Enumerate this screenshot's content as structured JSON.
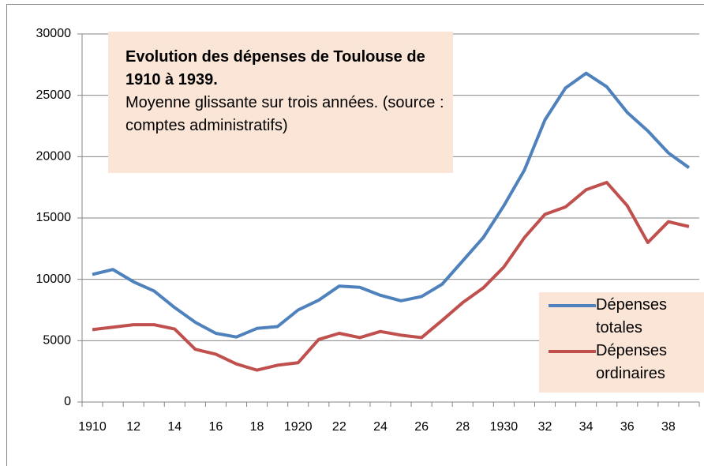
{
  "chart_data": {
    "type": "line",
    "title": "Evolution des dépenses de Toulouse de 1910 à 1939.",
    "subtitle": "Moyenne glissante sur trois années.  (source : comptes administratifs)",
    "categories": [
      "1910",
      null,
      "12",
      null,
      "14",
      null,
      "16",
      null,
      "18",
      null,
      "1920",
      null,
      "22",
      null,
      "24",
      null,
      "26",
      null,
      "28",
      null,
      "1930",
      null,
      "32",
      null,
      "34",
      null,
      "36",
      null,
      "38",
      null
    ],
    "series": [
      {
        "name": "Dépenses totales",
        "color": "#4f81bd",
        "values": [
          10400,
          10800,
          9800,
          9050,
          7700,
          6500,
          5600,
          5300,
          6000,
          6150,
          7500,
          8300,
          9450,
          9350,
          8700,
          8250,
          8600,
          9600,
          11500,
          13400,
          16000,
          18900,
          23000,
          25600,
          26800,
          25700,
          23600,
          22100,
          20300,
          19100
        ]
      },
      {
        "name": "Dépenses ordinaires",
        "color": "#c0504d",
        "values": [
          5900,
          6100,
          6300,
          6300,
          5950,
          4300,
          3900,
          3100,
          2600,
          3000,
          3200,
          5100,
          5600,
          5250,
          5750,
          5450,
          5250,
          6650,
          8100,
          9300,
          11000,
          13400,
          15300,
          15900,
          17300,
          17900,
          16000,
          13000,
          14700,
          14300
        ]
      }
    ],
    "ylim": [
      0,
      30000
    ],
    "yticks": [
      0,
      5000,
      10000,
      15000,
      20000,
      25000,
      30000
    ],
    "grid": true,
    "legend": "right"
  }
}
